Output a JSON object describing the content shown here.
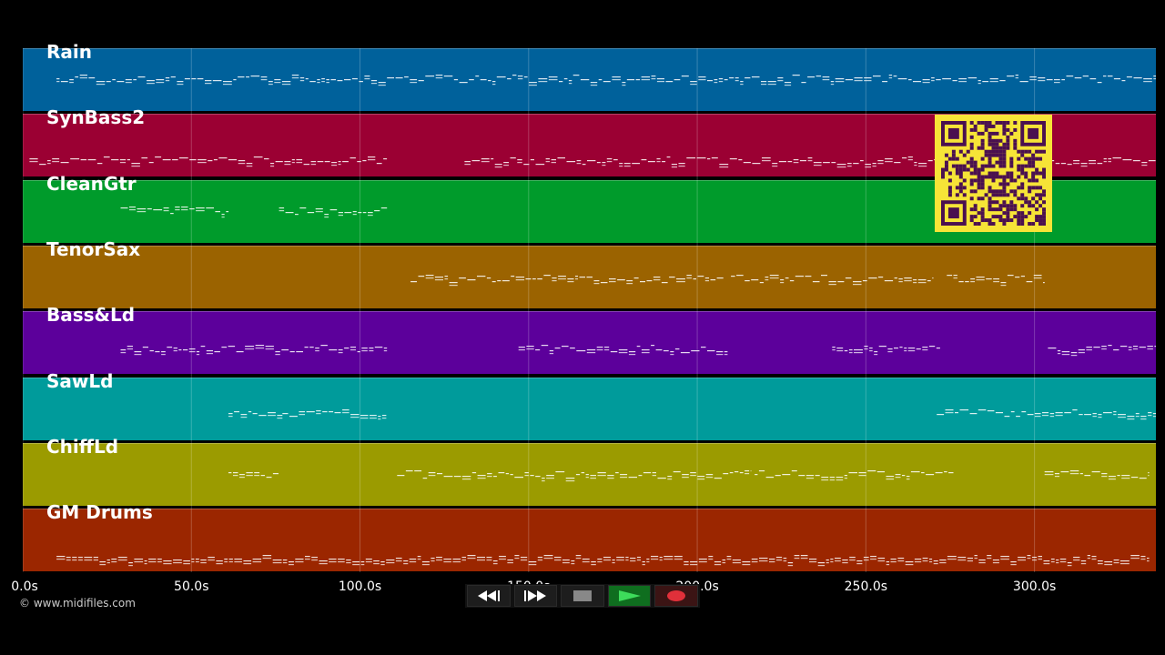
{
  "tracks": [
    {
      "name": "Rain",
      "color": "#00619b"
    },
    {
      "name": "SynBass2",
      "color": "#9b0033"
    },
    {
      "name": "CleanGtr",
      "color": "#009b2b"
    },
    {
      "name": "TenorSax",
      "color": "#9b6300"
    },
    {
      "name": "Bass&Ld",
      "color": "#5c009b"
    },
    {
      "name": "SawLd",
      "color": "#009b9b"
    },
    {
      "name": "ChiffLd",
      "color": "#9b9b00"
    },
    {
      "name": "GM Drums",
      "color": "#9b2600"
    }
  ],
  "timeline": {
    "max_seconds": 336,
    "ticks": [
      "0.0s",
      "50.0s",
      "100.0s",
      "150.0s",
      "200.0s",
      "250.0s",
      "300.0s"
    ],
    "tick_values": [
      0,
      50,
      100,
      150,
      200,
      250,
      300
    ]
  },
  "note_segments": [
    [
      [
        10,
        336
      ]
    ],
    [
      [
        2,
        108
      ],
      [
        131,
        336
      ]
    ],
    [
      [
        29,
        61
      ],
      [
        76,
        108
      ]
    ],
    [
      [
        115,
        208
      ],
      [
        210,
        270
      ],
      [
        274,
        303
      ]
    ],
    [
      [
        29,
        108
      ],
      [
        147,
        209
      ],
      [
        240,
        272
      ],
      [
        304,
        336
      ]
    ],
    [
      [
        61,
        77
      ],
      [
        77,
        108
      ],
      [
        271,
        336
      ]
    ],
    [
      [
        61,
        76
      ],
      [
        111,
        216
      ],
      [
        217,
        276
      ],
      [
        303,
        334
      ]
    ],
    [
      [
        10,
        334
      ]
    ]
  ],
  "copyright": "© www.midifiles.com",
  "transport": {
    "rewind_icon": "rewind-icon",
    "fast_forward_icon": "fast-forward-icon",
    "stop_icon": "stop-icon",
    "play_icon": "play-icon",
    "record_icon": "record-icon",
    "play_color": "#3ddc5b",
    "record_color": "#e0303a"
  },
  "qr_code": {
    "icon": "qr-code-icon",
    "background": "#f6e437",
    "foreground": "#4a1050"
  }
}
